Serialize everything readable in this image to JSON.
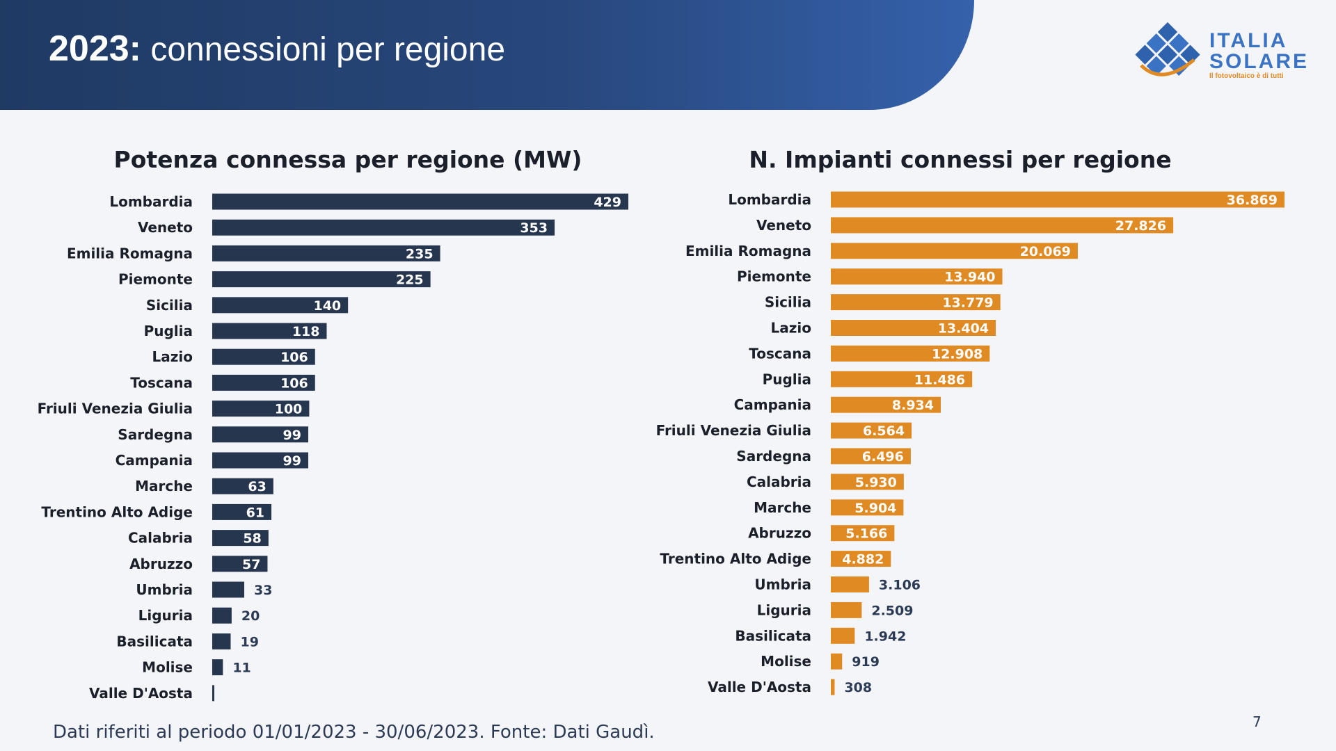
{
  "header": {
    "title_year": "2023:",
    "title_text": "connessioni per regione",
    "logo": {
      "line1": "ITALIA",
      "line2": "SOLARE",
      "tagline": "Il fotovoltaico è di tutti",
      "icon": "solar-panel-grid-icon"
    }
  },
  "colors": {
    "navy": "#27364f",
    "orange": "#e08a24",
    "header": "#27467a"
  },
  "chart_data": [
    {
      "type": "bar",
      "orientation": "horizontal",
      "title": "Potenza connessa per regione (MW)",
      "categories": [
        "Lombardia",
        "Veneto",
        "Emilia Romagna",
        "Piemonte",
        "Sicilia",
        "Puglia",
        "Lazio",
        "Toscana",
        "Friuli Venezia Giulia",
        "Sardegna",
        "Campania",
        "Marche",
        "Trentino Alto Adige",
        "Calabria",
        "Abruzzo",
        "Umbria",
        "Liguria",
        "Basilicata",
        "Molise",
        "Valle D'Aosta"
      ],
      "values": [
        429,
        353,
        235,
        225,
        140,
        118,
        106,
        106,
        100,
        99,
        99,
        63,
        61,
        58,
        57,
        33,
        20,
        19,
        11,
        1
      ],
      "labels": [
        "429",
        "353",
        "235",
        "225",
        "140",
        "118",
        "106",
        "106",
        "100",
        "99",
        "99",
        "63",
        "61",
        "58",
        "57",
        "33",
        "20",
        "19",
        "11",
        ""
      ],
      "color": "#27364f",
      "xlim": [
        0,
        429
      ]
    },
    {
      "type": "bar",
      "orientation": "horizontal",
      "title": "N. Impianti connessi per regione",
      "categories": [
        "Lombardia",
        "Veneto",
        "Emilia Romagna",
        "Piemonte",
        "Sicilia",
        "Lazio",
        "Toscana",
        "Puglia",
        "Campania",
        "Friuli Venezia Giulia",
        "Sardegna",
        "Calabria",
        "Marche",
        "Abruzzo",
        "Trentino Alto Adige",
        "Umbria",
        "Liguria",
        "Basilicata",
        "Molise",
        "Valle D'Aosta"
      ],
      "values": [
        36869,
        27826,
        20069,
        13940,
        13779,
        13404,
        12908,
        11486,
        8934,
        6564,
        6496,
        5930,
        5904,
        5166,
        4882,
        3106,
        2509,
        1942,
        919,
        308
      ],
      "labels": [
        "36.869",
        "27.826",
        "20.069",
        "13.940",
        "13.779",
        "13.404",
        "12.908",
        "11.486",
        "8.934",
        "6.564",
        "6.496",
        "5.930",
        "5.904",
        "5.166",
        "4.882",
        "3.106",
        "2.509",
        "1.942",
        "919",
        "308"
      ],
      "color": "#e08a24",
      "xlim": [
        0,
        36869
      ]
    }
  ],
  "footer": {
    "note": "Dati riferiti al periodo 01/01/2023 - 30/06/2023. Fonte: Dati Gaudì.",
    "page": "7"
  }
}
